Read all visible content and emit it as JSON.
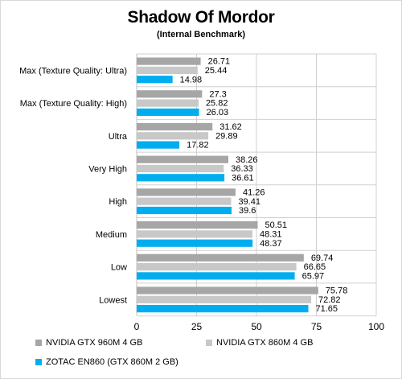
{
  "chart_data": {
    "type": "bar",
    "orientation": "horizontal",
    "title": "Shadow Of Mordor",
    "subtitle": "(Internal Benchmark)",
    "categories": [
      "Max (Texture Quality: Ultra)",
      "Max (Texture Quality: High)",
      "Ultra",
      "Very High",
      "High",
      "Medium",
      "Low",
      "Lowest"
    ],
    "series": [
      {
        "name": "NVIDIA GTX 960M 4 GB",
        "color": "#a6a6a6",
        "values": [
          26.71,
          27.3,
          31.62,
          38.26,
          41.26,
          50.51,
          69.74,
          75.78
        ],
        "labels": [
          "26.71",
          "27.3",
          "31.62",
          "38.26",
          "41.26",
          "50.51",
          "69.74",
          "75.78"
        ]
      },
      {
        "name": "NVIDIA GTX 860M 4 GB",
        "color": "#c8c8c8",
        "values": [
          25.44,
          25.82,
          29.89,
          36.33,
          39.41,
          48.31,
          66.65,
          72.82
        ],
        "labels": [
          "25.44",
          "25.82",
          "29.89",
          "36.33",
          "39.41",
          "48.31",
          "66.65",
          "72.82"
        ]
      },
      {
        "name": "ZOTAC EN860 (GTX 860M 2 GB)",
        "color": "#00aeef",
        "values": [
          14.98,
          26.03,
          17.82,
          36.61,
          39.6,
          48.37,
          65.97,
          71.65
        ],
        "labels": [
          "14.98",
          "26.03",
          "17.82",
          "36.61",
          "39.6",
          "48.37",
          "65.97",
          "71.65"
        ]
      }
    ],
    "xlim": [
      0,
      100
    ],
    "xticks": [
      "0",
      "25",
      "50",
      "75",
      "100"
    ],
    "grid": true,
    "legend_position": "bottom"
  }
}
